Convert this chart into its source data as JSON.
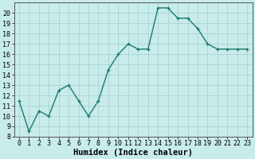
{
  "x": [
    0,
    1,
    2,
    3,
    4,
    5,
    6,
    7,
    8,
    9,
    10,
    11,
    12,
    13,
    14,
    15,
    16,
    17,
    18,
    19,
    20,
    21,
    22,
    23
  ],
  "y": [
    11.5,
    8.5,
    10.5,
    10.0,
    12.5,
    13.0,
    11.5,
    10.0,
    11.5,
    14.5,
    16.0,
    17.0,
    16.5,
    16.5,
    20.5,
    20.5,
    19.5,
    19.5,
    18.5,
    17.0,
    16.5,
    16.5,
    16.5,
    16.5
  ],
  "line_color": "#1a7a6e",
  "marker": "+",
  "bg_color": "#c8ecea",
  "grid_color": "#a0cece",
  "xlabel": "Humidex (Indice chaleur)",
  "ylim": [
    8,
    21
  ],
  "yticks": [
    8,
    9,
    10,
    11,
    12,
    13,
    14,
    15,
    16,
    17,
    18,
    19,
    20
  ],
  "xticks": [
    0,
    1,
    2,
    3,
    4,
    5,
    6,
    7,
    8,
    9,
    10,
    11,
    12,
    13,
    14,
    15,
    16,
    17,
    18,
    19,
    20,
    21,
    22,
    23
  ],
  "xlabel_fontsize": 7.5,
  "tick_fontsize": 6,
  "linewidth": 1.0,
  "markersize": 3.5,
  "spine_color": "#555555"
}
